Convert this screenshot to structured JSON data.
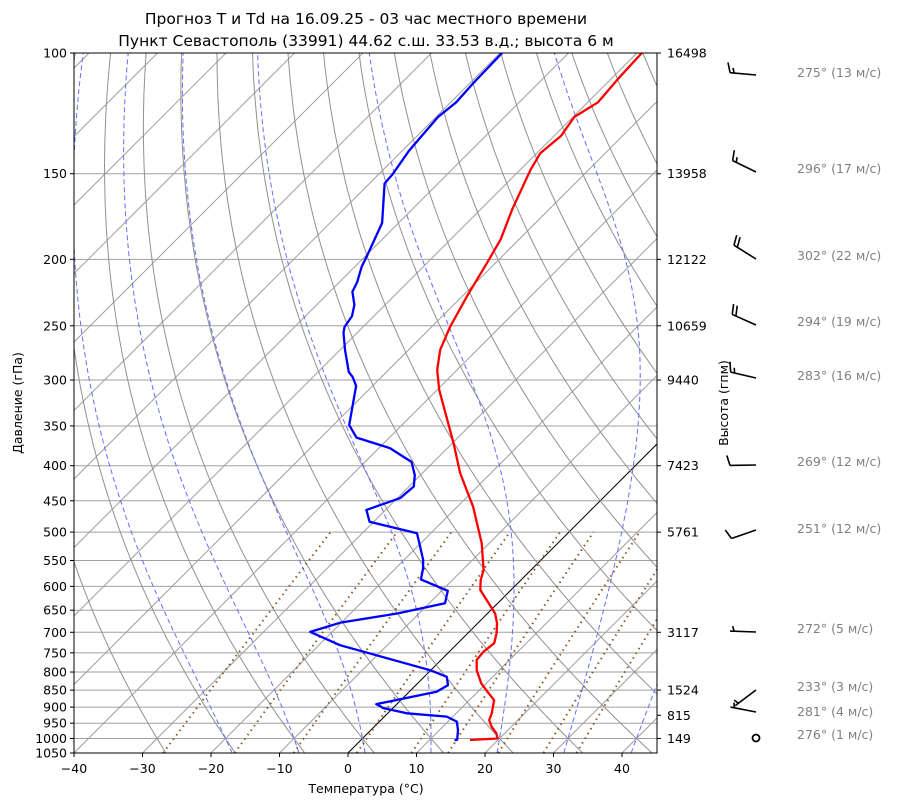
{
  "chart_data": {
    "type": "skew-t",
    "title": [
      "Прогноз T и Td на 16.09.25 - 03 час местного времени",
      "Пункт Севастополь (33991) 44.62 с.ш. 33.53 в.д.; высота 6 м"
    ],
    "xlabel": "Температура (°C)",
    "ylabel": "Давление (гПа)",
    "ylabel_right": "Высота (гпм)",
    "xlim": [
      -40,
      45
    ],
    "ylim": [
      1050,
      100
    ],
    "x_ticks": [
      -40,
      -30,
      -20,
      -10,
      0,
      10,
      20,
      30,
      40
    ],
    "y_ticks": [
      100,
      150,
      200,
      250,
      300,
      350,
      400,
      450,
      500,
      550,
      600,
      650,
      700,
      750,
      800,
      850,
      900,
      950,
      1000,
      1050
    ],
    "height_ticks": [
      {
        "p": 100,
        "label": "16498"
      },
      {
        "p": 150,
        "label": "13958"
      },
      {
        "p": 200,
        "label": "12122"
      },
      {
        "p": 250,
        "label": "10659"
      },
      {
        "p": 300,
        "label": "9440"
      },
      {
        "p": 400,
        "label": "7423"
      },
      {
        "p": 500,
        "label": "5761"
      },
      {
        "p": 700,
        "label": "3117"
      },
      {
        "p": 850,
        "label": "1524"
      },
      {
        "p": 925,
        "label": "815"
      },
      {
        "p": 1000,
        "label": "149"
      }
    ],
    "series": [
      {
        "name": "T",
        "color": "#ff0000",
        "points": [
          [
            1005,
            15.9
          ],
          [
            1000,
            19.7
          ],
          [
            983,
            18.8
          ],
          [
            961,
            17.1
          ],
          [
            940,
            15.8
          ],
          [
            919,
            15.2
          ],
          [
            879,
            13.6
          ],
          [
            859,
            11.8
          ],
          [
            831,
            9.3
          ],
          [
            795,
            6.7
          ],
          [
            768,
            5.2
          ],
          [
            747,
            5.0
          ],
          [
            726,
            5.3
          ],
          [
            702,
            4.2
          ],
          [
            679,
            2.8
          ],
          [
            657,
            1.1
          ],
          [
            628,
            -2.1
          ],
          [
            607,
            -4.5
          ],
          [
            587,
            -5.9
          ],
          [
            568,
            -6.9
          ],
          [
            519,
            -11.1
          ],
          [
            459,
            -17.7
          ],
          [
            410,
            -24.5
          ],
          [
            371,
            -29.8
          ],
          [
            310,
            -39.7
          ],
          [
            290,
            -42.9
          ],
          [
            271,
            -45.4
          ],
          [
            251,
            -47.3
          ],
          [
            224,
            -49.5
          ],
          [
            203,
            -51.2
          ],
          [
            187,
            -52.7
          ],
          [
            169,
            -55.4
          ],
          [
            148,
            -58.5
          ],
          [
            140,
            -59.5
          ],
          [
            132,
            -59.0
          ],
          [
            124,
            -59.8
          ],
          [
            118,
            -58.5
          ],
          [
            109,
            -59.0
          ],
          [
            100,
            -59.3
          ]
        ]
      },
      {
        "name": "Td",
        "color": "#0000ff",
        "points": [
          [
            1006,
            13.7
          ],
          [
            1004,
            14.0
          ],
          [
            972,
            12.7
          ],
          [
            945,
            11.3
          ],
          [
            929,
            9.1
          ],
          [
            919,
            2.8
          ],
          [
            903,
            -1.4
          ],
          [
            891,
            -3.0
          ],
          [
            855,
            4.0
          ],
          [
            836,
            4.7
          ],
          [
            813,
            3.3
          ],
          [
            795,
            -0.1
          ],
          [
            731,
            -16.9
          ],
          [
            699,
            -23.2
          ],
          [
            678,
            -20.2
          ],
          [
            657,
            -13.1
          ],
          [
            635,
            -7.7
          ],
          [
            609,
            -9.1
          ],
          [
            586,
            -14.7
          ],
          [
            566,
            -15.9
          ],
          [
            549,
            -17.2
          ],
          [
            502,
            -22.0
          ],
          [
            483,
            -30.6
          ],
          [
            464,
            -32.8
          ],
          [
            446,
            -29.6
          ],
          [
            429,
            -29.3
          ],
          [
            413,
            -30.8
          ],
          [
            395,
            -33.2
          ],
          [
            377,
            -38.4
          ],
          [
            364,
            -44.8
          ],
          [
            349,
            -47.7
          ],
          [
            306,
            -52.4
          ],
          [
            297,
            -54.2
          ],
          [
            292,
            -55.5
          ],
          [
            271,
            -59.3
          ],
          [
            256,
            -62.0
          ],
          [
            251,
            -62.7
          ],
          [
            242,
            -63.2
          ],
          [
            233,
            -64.5
          ],
          [
            223,
            -66.7
          ],
          [
            216,
            -67.4
          ],
          [
            205,
            -69.0
          ],
          [
            196,
            -70.0
          ],
          [
            177,
            -72.4
          ],
          [
            155,
            -77.8
          ],
          [
            150,
            -78.0
          ],
          [
            139,
            -79.0
          ],
          [
            124,
            -79.7
          ],
          [
            118,
            -79.2
          ],
          [
            111,
            -79.5
          ],
          [
            100,
            -79.7
          ]
        ]
      }
    ],
    "dry_adiabats_theta_c": [
      -30,
      -20,
      -10,
      0,
      10,
      20,
      30,
      40,
      50,
      60,
      70,
      80,
      90,
      100,
      110,
      120,
      130,
      140,
      150,
      160,
      170,
      180,
      190
    ],
    "moist_adiabats_t1000": [
      -20,
      -10,
      0,
      10,
      20,
      30,
      40
    ],
    "mixing_ratios": [
      0.0004,
      0.001,
      0.002,
      0.004,
      0.007,
      0.01,
      0.016,
      0.024,
      0.032
    ],
    "highlight_isotherm": 0,
    "winds": [
      {
        "p": 100,
        "dir": 275,
        "speed": 13,
        "label": "275° (13 м/с)"
      },
      {
        "p": 150,
        "dir": 296,
        "speed": 17,
        "label": "296° (17 м/с)"
      },
      {
        "p": 200,
        "dir": 302,
        "speed": 22,
        "label": "302° (22 м/с)"
      },
      {
        "p": 250,
        "dir": 294,
        "speed": 19,
        "label": "294° (19 м/с)"
      },
      {
        "p": 300,
        "dir": 283,
        "speed": 16,
        "label": "283° (16 м/с)"
      },
      {
        "p": 400,
        "dir": 269,
        "speed": 12,
        "label": "269° (12 м/с)"
      },
      {
        "p": 500,
        "dir": 251,
        "speed": 12,
        "label": "251° (12 м/с)"
      },
      {
        "p": 700,
        "dir": 272,
        "speed": 5,
        "label": "272° (5 м/с)"
      },
      {
        "p": 850,
        "dir": 233,
        "speed": 3,
        "label": "233° (3 м/с)"
      },
      {
        "p": 925,
        "dir": 281,
        "speed": 4,
        "label": "281° (4 м/с)"
      },
      {
        "p": 1000,
        "dir": 276,
        "speed": 1,
        "label": "276° (1 м/с)"
      }
    ]
  }
}
